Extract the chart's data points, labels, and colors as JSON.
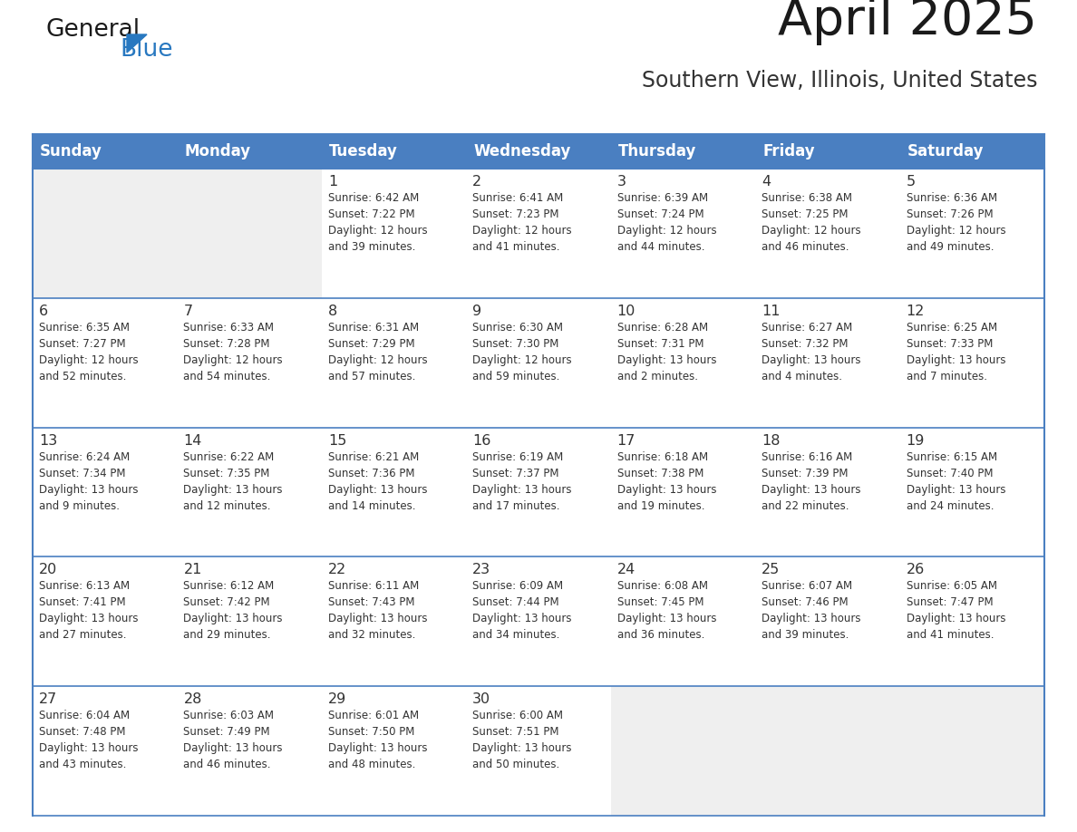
{
  "title": "April 2025",
  "subtitle": "Southern View, Illinois, United States",
  "days_of_week": [
    "Sunday",
    "Monday",
    "Tuesday",
    "Wednesday",
    "Thursday",
    "Friday",
    "Saturday"
  ],
  "header_bg": "#4a7fc1",
  "header_text_color": "#ffffff",
  "cell_bg_light": "#efefef",
  "cell_bg_white": "#ffffff",
  "border_color": "#4a7fc1",
  "text_color": "#333333",
  "title_color": "#1a1a1a",
  "subtitle_color": "#333333",
  "logo_general_color": "#1a1a1a",
  "logo_blue_color": "#2878c0",
  "weeks": [
    [
      {
        "day": null,
        "info": null
      },
      {
        "day": null,
        "info": null
      },
      {
        "day": 1,
        "info": "Sunrise: 6:42 AM\nSunset: 7:22 PM\nDaylight: 12 hours\nand 39 minutes."
      },
      {
        "day": 2,
        "info": "Sunrise: 6:41 AM\nSunset: 7:23 PM\nDaylight: 12 hours\nand 41 minutes."
      },
      {
        "day": 3,
        "info": "Sunrise: 6:39 AM\nSunset: 7:24 PM\nDaylight: 12 hours\nand 44 minutes."
      },
      {
        "day": 4,
        "info": "Sunrise: 6:38 AM\nSunset: 7:25 PM\nDaylight: 12 hours\nand 46 minutes."
      },
      {
        "day": 5,
        "info": "Sunrise: 6:36 AM\nSunset: 7:26 PM\nDaylight: 12 hours\nand 49 minutes."
      }
    ],
    [
      {
        "day": 6,
        "info": "Sunrise: 6:35 AM\nSunset: 7:27 PM\nDaylight: 12 hours\nand 52 minutes."
      },
      {
        "day": 7,
        "info": "Sunrise: 6:33 AM\nSunset: 7:28 PM\nDaylight: 12 hours\nand 54 minutes."
      },
      {
        "day": 8,
        "info": "Sunrise: 6:31 AM\nSunset: 7:29 PM\nDaylight: 12 hours\nand 57 minutes."
      },
      {
        "day": 9,
        "info": "Sunrise: 6:30 AM\nSunset: 7:30 PM\nDaylight: 12 hours\nand 59 minutes."
      },
      {
        "day": 10,
        "info": "Sunrise: 6:28 AM\nSunset: 7:31 PM\nDaylight: 13 hours\nand 2 minutes."
      },
      {
        "day": 11,
        "info": "Sunrise: 6:27 AM\nSunset: 7:32 PM\nDaylight: 13 hours\nand 4 minutes."
      },
      {
        "day": 12,
        "info": "Sunrise: 6:25 AM\nSunset: 7:33 PM\nDaylight: 13 hours\nand 7 minutes."
      }
    ],
    [
      {
        "day": 13,
        "info": "Sunrise: 6:24 AM\nSunset: 7:34 PM\nDaylight: 13 hours\nand 9 minutes."
      },
      {
        "day": 14,
        "info": "Sunrise: 6:22 AM\nSunset: 7:35 PM\nDaylight: 13 hours\nand 12 minutes."
      },
      {
        "day": 15,
        "info": "Sunrise: 6:21 AM\nSunset: 7:36 PM\nDaylight: 13 hours\nand 14 minutes."
      },
      {
        "day": 16,
        "info": "Sunrise: 6:19 AM\nSunset: 7:37 PM\nDaylight: 13 hours\nand 17 minutes."
      },
      {
        "day": 17,
        "info": "Sunrise: 6:18 AM\nSunset: 7:38 PM\nDaylight: 13 hours\nand 19 minutes."
      },
      {
        "day": 18,
        "info": "Sunrise: 6:16 AM\nSunset: 7:39 PM\nDaylight: 13 hours\nand 22 minutes."
      },
      {
        "day": 19,
        "info": "Sunrise: 6:15 AM\nSunset: 7:40 PM\nDaylight: 13 hours\nand 24 minutes."
      }
    ],
    [
      {
        "day": 20,
        "info": "Sunrise: 6:13 AM\nSunset: 7:41 PM\nDaylight: 13 hours\nand 27 minutes."
      },
      {
        "day": 21,
        "info": "Sunrise: 6:12 AM\nSunset: 7:42 PM\nDaylight: 13 hours\nand 29 minutes."
      },
      {
        "day": 22,
        "info": "Sunrise: 6:11 AM\nSunset: 7:43 PM\nDaylight: 13 hours\nand 32 minutes."
      },
      {
        "day": 23,
        "info": "Sunrise: 6:09 AM\nSunset: 7:44 PM\nDaylight: 13 hours\nand 34 minutes."
      },
      {
        "day": 24,
        "info": "Sunrise: 6:08 AM\nSunset: 7:45 PM\nDaylight: 13 hours\nand 36 minutes."
      },
      {
        "day": 25,
        "info": "Sunrise: 6:07 AM\nSunset: 7:46 PM\nDaylight: 13 hours\nand 39 minutes."
      },
      {
        "day": 26,
        "info": "Sunrise: 6:05 AM\nSunset: 7:47 PM\nDaylight: 13 hours\nand 41 minutes."
      }
    ],
    [
      {
        "day": 27,
        "info": "Sunrise: 6:04 AM\nSunset: 7:48 PM\nDaylight: 13 hours\nand 43 minutes."
      },
      {
        "day": 28,
        "info": "Sunrise: 6:03 AM\nSunset: 7:49 PM\nDaylight: 13 hours\nand 46 minutes."
      },
      {
        "day": 29,
        "info": "Sunrise: 6:01 AM\nSunset: 7:50 PM\nDaylight: 13 hours\nand 48 minutes."
      },
      {
        "day": 30,
        "info": "Sunrise: 6:00 AM\nSunset: 7:51 PM\nDaylight: 13 hours\nand 50 minutes."
      },
      {
        "day": null,
        "info": null
      },
      {
        "day": null,
        "info": null
      },
      {
        "day": null,
        "info": null
      }
    ]
  ]
}
